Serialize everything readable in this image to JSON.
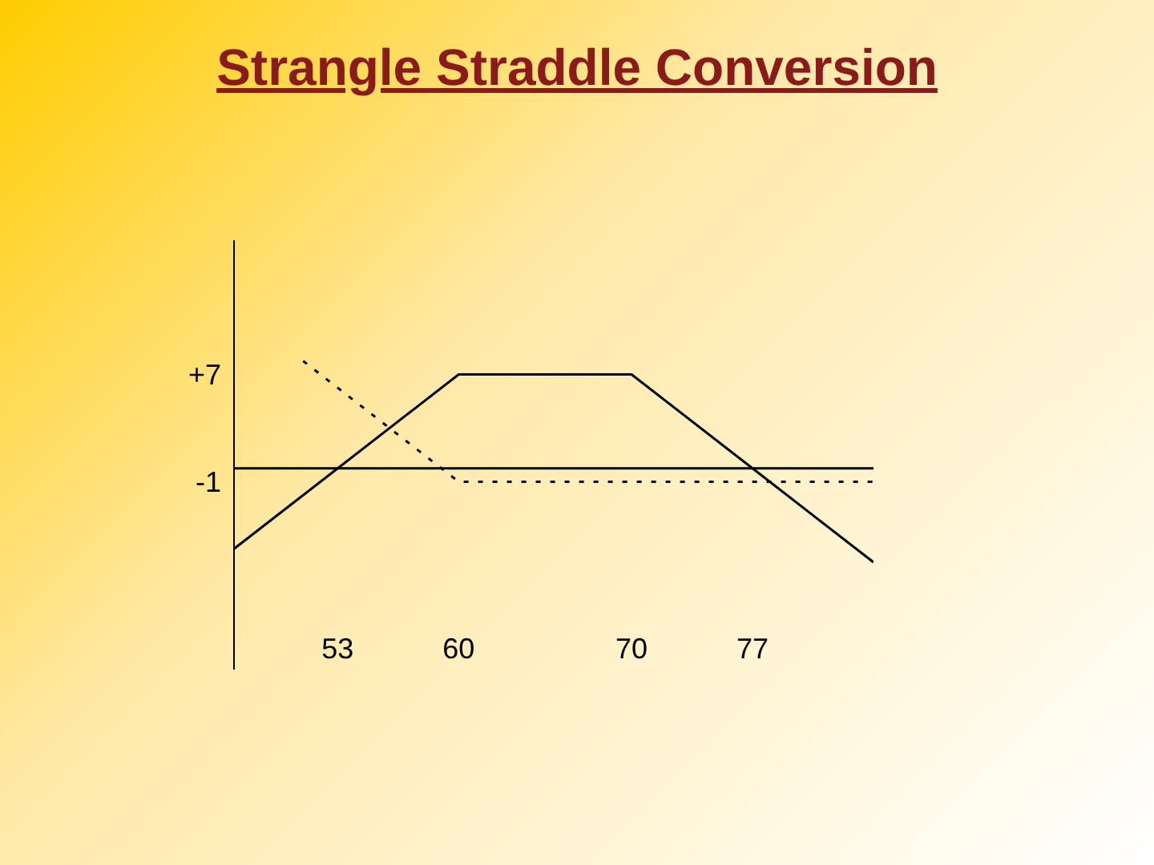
{
  "chart_data": {
    "type": "line",
    "title": "Strangle Straddle Conversion",
    "xlim": [
      47,
      84
    ],
    "xticks": [
      53,
      60,
      70,
      77
    ],
    "ylim": [
      -15,
      17
    ],
    "yticks": [
      {
        "value": 7,
        "label": "+7"
      },
      -1
    ],
    "ref_lines": [
      {
        "axis": "y",
        "value": 0,
        "color": "#000000"
      }
    ],
    "series": [
      {
        "color": "#000000",
        "line_style": "solid",
        "x": [
          47,
          53,
          60,
          70,
          77,
          84
        ],
        "values": [
          -6,
          0,
          7,
          7,
          0,
          -7
        ]
      },
      {
        "color": "#000000",
        "line_style": "dotted",
        "x": [
          51,
          60,
          84
        ],
        "values": [
          8,
          -1,
          -1
        ]
      }
    ],
    "marker": "none",
    "grid": false
  }
}
